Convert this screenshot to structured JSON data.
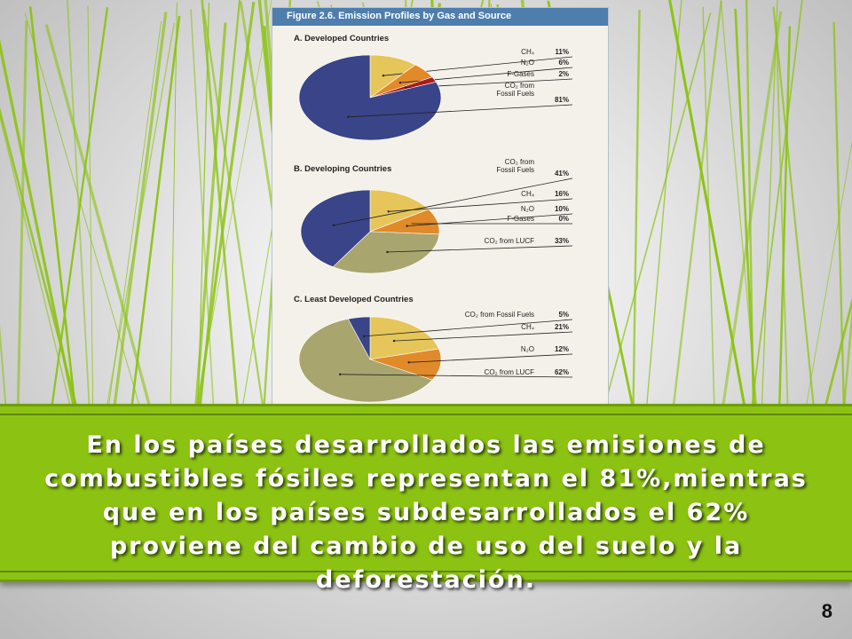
{
  "figure": {
    "title": "Figure 2.6.  Emission Profiles by Gas and Source"
  },
  "chart_data": [
    {
      "type": "pie",
      "title": "A. Developed Countries",
      "slices": [
        {
          "label": "CH₄",
          "value": 11,
          "pct": "11%",
          "color": "#e6c65a"
        },
        {
          "label": "N₂O",
          "value": 6,
          "pct": "6%",
          "color": "#e08a2a"
        },
        {
          "label": "F-Gases",
          "value": 2,
          "pct": "2%",
          "color": "#a81d1d"
        },
        {
          "label": "CO₂ from Fossil Fuels",
          "value": 81,
          "pct": "81%",
          "color": "#3a4488"
        }
      ]
    },
    {
      "type": "pie",
      "title": "B. Developing Countries",
      "slices": [
        {
          "label": "CH₄",
          "value": 16,
          "pct": "16%",
          "color": "#e6c65a"
        },
        {
          "label": "N₂O",
          "value": 10,
          "pct": "10%",
          "color": "#e08a2a"
        },
        {
          "label": "F-Gases",
          "value": 0,
          "pct": "0%",
          "color": "#a81d1d"
        },
        {
          "label": "CO₂ from LUCF",
          "value": 33,
          "pct": "33%",
          "color": "#a9a56e"
        },
        {
          "label": "CO₂ from Fossil Fuels",
          "value": 41,
          "pct": "41%",
          "color": "#3a4488"
        }
      ]
    },
    {
      "type": "pie",
      "title": "C. Least Developed Countries",
      "slices": [
        {
          "label": "CH₄",
          "value": 21,
          "pct": "21%",
          "color": "#e6c65a"
        },
        {
          "label": "N₂O",
          "value": 12,
          "pct": "12%",
          "color": "#e08a2a"
        },
        {
          "label": "CO₂ from LUCF",
          "value": 62,
          "pct": "62%",
          "color": "#a9a56e"
        },
        {
          "label": "CO₂ from Fossil Fuels",
          "value": 5,
          "pct": "5%",
          "color": "#3a4488"
        }
      ]
    }
  ],
  "caption": "En los países desarrollados las emisiones de combustibles fósiles representan el 81%,mientras que en los países subdesarrollados el 62% proviene del cambio de uso del suelo y la deforestación.",
  "page_number": "8",
  "colors": {
    "band": "#8cc312",
    "grass": "#8cc312",
    "figure_header": "#4d7eae"
  }
}
